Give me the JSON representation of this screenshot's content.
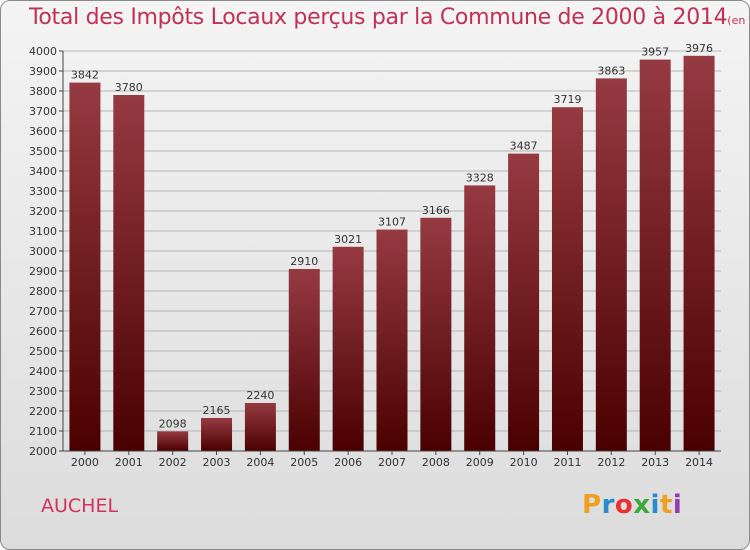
{
  "title": "Total des Impôts Locaux perçus par la Commune de 2000 à 2014",
  "title_unit": "(en milliers d'€)",
  "commune": "AUCHEL",
  "brand": {
    "letters": [
      "P",
      "r",
      "o",
      "x",
      "i",
      "t",
      "i"
    ],
    "colors": [
      "#f0a020",
      "#2a8ad0",
      "#e83030",
      "#3aaa3a",
      "#2a8ad0",
      "#f0a020",
      "#9a3ab0"
    ]
  },
  "colors": {
    "bar_top": "#963a42",
    "bar_bottom": "#4a0000",
    "title": "#c03058",
    "axis": "#333333"
  },
  "chart_data": {
    "type": "bar",
    "title": "Total des Impôts Locaux perçus par la Commune de 2000 à 2014",
    "xlabel": "",
    "ylabel": "",
    "ylim": [
      2000,
      4000
    ],
    "yticks": [
      2000,
      2100,
      2200,
      2300,
      2400,
      2500,
      2600,
      2700,
      2800,
      2900,
      3000,
      3100,
      3200,
      3300,
      3400,
      3500,
      3600,
      3700,
      3800,
      3900,
      4000
    ],
    "categories": [
      "2000",
      "2001",
      "2002",
      "2003",
      "2004",
      "2005",
      "2006",
      "2007",
      "2008",
      "2009",
      "2010",
      "2011",
      "2012",
      "2013",
      "2014"
    ],
    "values": [
      3842,
      3780,
      2098,
      2165,
      2240,
      2910,
      3021,
      3107,
      3166,
      3328,
      3487,
      3719,
      3863,
      3957,
      3976
    ],
    "data_labels": [
      "3842",
      "3780",
      "2098",
      "2165",
      "2240",
      "2910",
      "3021",
      "3107",
      "3166",
      "3328",
      "3487",
      "3719",
      "3863",
      "3957",
      "3976"
    ]
  }
}
